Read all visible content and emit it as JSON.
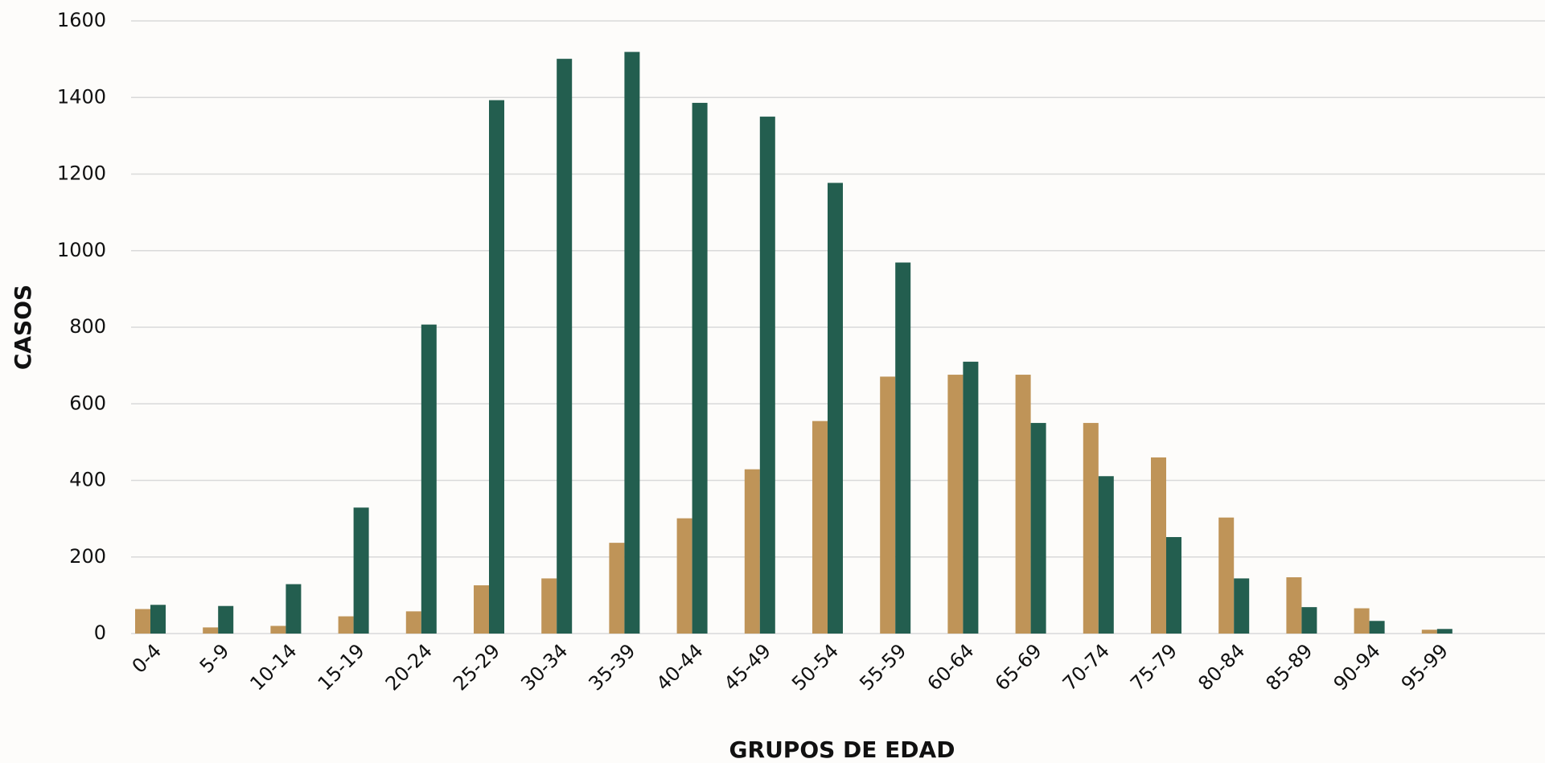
{
  "chart_data": {
    "type": "grouped_bar",
    "y_label": "CASOS",
    "x_label": "GRUPOS DE EDAD",
    "categories": [
      "0-4",
      "5-9",
      "10-14",
      "15-19",
      "20-24",
      "25-29",
      "30-34",
      "35-39",
      "40-44",
      "45-49",
      "50-54",
      "55-59",
      "60-64",
      "65-69",
      "70-74",
      "75-79",
      "80-84",
      "85-89",
      "90-94",
      "95-99"
    ],
    "series": [
      {
        "color": "#bf9458",
        "values": [
          64,
          16,
          20,
          45,
          58,
          126,
          144,
          237,
          301,
          429,
          555,
          671,
          676,
          676,
          550,
          460,
          303,
          147,
          66,
          10
        ]
      },
      {
        "color": "#235e4f",
        "values": [
          75,
          72,
          129,
          329,
          807,
          1393,
          1501,
          1519,
          1386,
          1350,
          1177,
          969,
          710,
          550,
          411,
          252,
          144,
          69,
          33,
          12
        ]
      }
    ],
    "ylim": [
      0,
      1600
    ],
    "yticks": [
      0,
      200,
      400,
      600,
      800,
      1000,
      1200,
      1400,
      1600
    ],
    "grid": true
  }
}
